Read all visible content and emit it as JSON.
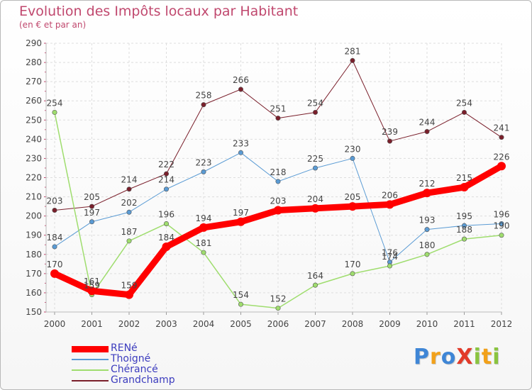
{
  "title": "Evolution des Impôts locaux par Habitant",
  "subtitle": "(en € et par an)",
  "logo": {
    "letters": [
      {
        "ch": "P",
        "color": "#3f86d6"
      },
      {
        "ch": "r",
        "color": "#f2a11a"
      },
      {
        "ch": "o",
        "color": "#3f86d6"
      },
      {
        "ch": "X",
        "color": "#e23b2a"
      },
      {
        "ch": "i",
        "color": "#8ac43f"
      },
      {
        "ch": "t",
        "color": "#f2a11a"
      },
      {
        "ch": "i",
        "color": "#8ac43f"
      }
    ]
  },
  "chart_data": {
    "type": "line",
    "x": [
      "2000",
      "2001",
      "2002",
      "2003",
      "2004",
      "2005",
      "2006",
      "2007",
      "2008",
      "2009",
      "2010",
      "2011",
      "2012"
    ],
    "ylim": [
      150,
      290
    ],
    "yticks": [
      150,
      160,
      170,
      180,
      190,
      200,
      210,
      220,
      230,
      240,
      250,
      260,
      270,
      280,
      290
    ],
    "grid": true,
    "legend_position": "bottom-left",
    "series": [
      {
        "name": "Grandchamp",
        "color": "#7a1f2b",
        "line_width": 1,
        "values": [
          203,
          205,
          214,
          222,
          258,
          266,
          251,
          254,
          281,
          239,
          244,
          254,
          241
        ]
      },
      {
        "name": "Thoigné",
        "color": "#5a9bd4",
        "line_width": 1,
        "values": [
          184,
          197,
          202,
          214,
          223,
          233,
          218,
          225,
          230,
          176,
          193,
          195,
          196
        ]
      },
      {
        "name": "Chérancé",
        "color": "#9fdd6e",
        "line_width": 1.5,
        "values": [
          254,
          159,
          187,
          196,
          181,
          154,
          152,
          164,
          170,
          174,
          180,
          188,
          190
        ]
      },
      {
        "name": "RENé",
        "color": "#ff0000",
        "line_width": 9,
        "values": [
          170,
          161,
          159,
          184,
          194,
          197,
          203,
          204,
          205,
          206,
          212,
          215,
          226
        ]
      }
    ],
    "legend_order": [
      "RENé",
      "Thoigné",
      "Chérancé",
      "Grandchamp"
    ]
  }
}
